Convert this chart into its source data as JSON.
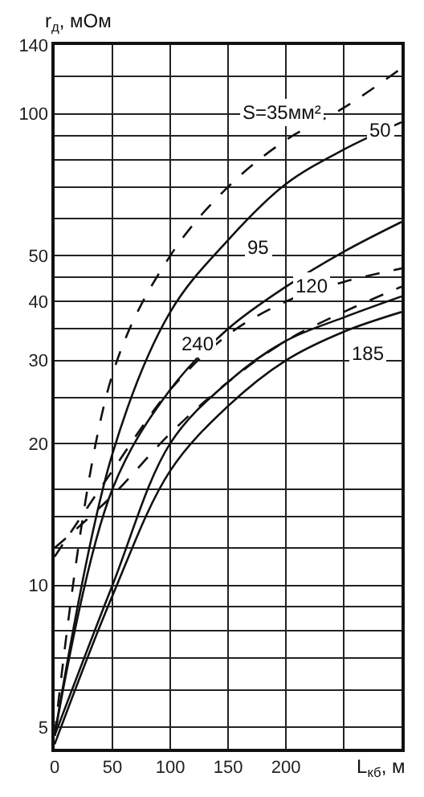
{
  "chart_data": {
    "type": "line",
    "xlabel": "L$_{кб}$, м",
    "ylabel": "r$_{д}$, мОм",
    "log": "y",
    "grid": true,
    "marker": "none",
    "x": [
      0,
      50,
      100,
      150,
      200,
      250,
      300
    ],
    "xlim": [
      0,
      300
    ],
    "xticks": [
      0,
      50,
      100,
      150,
      200,
      {
        "value": 250,
        "label": null
      },
      {
        "value": 300,
        "label": null
      }
    ],
    "ylim": [
      4.5,
      140
    ],
    "yticks": [
      5,
      {
        "value": 6,
        "label": null
      },
      {
        "value": 7,
        "label": null
      },
      {
        "value": 8,
        "label": null
      },
      {
        "value": 9,
        "label": null
      },
      10,
      {
        "value": 12,
        "label": null
      },
      {
        "value": 14,
        "label": null
      },
      {
        "value": 16,
        "label": null
      },
      20,
      {
        "value": 25,
        "label": null
      },
      30,
      {
        "value": 35,
        "label": null
      },
      40,
      {
        "value": 45,
        "label": null
      },
      50,
      {
        "value": 60,
        "label": null
      },
      {
        "value": 70,
        "label": null
      },
      {
        "value": 80,
        "label": null
      },
      {
        "value": 90,
        "label": null
      },
      100,
      {
        "value": 120,
        "label": null
      },
      140
    ],
    "series": [
      {
        "color": "#111111",
        "line_style": "dashed",
        "values": [
          4.8,
          28,
          50,
          70,
          88,
          103,
          125
        ]
      },
      {
        "color": "#111111",
        "line_style": "solid",
        "values": [
          4.8,
          19,
          38,
          54,
          71,
          84,
          96
        ]
      },
      {
        "color": "#111111",
        "line_style": "solid",
        "values": [
          4.8,
          16,
          26,
          35,
          43,
          51,
          59
        ]
      },
      {
        "color": "#111111",
        "line_style": "dashed",
        "values": [
          11.5,
          17.5,
          26,
          34,
          40,
          44,
          47
        ]
      },
      {
        "color": "#111111",
        "line_style": "dashed",
        "values": [
          12,
          15.5,
          21,
          27,
          33,
          38,
          43
        ]
      },
      {
        "color": "#111111",
        "line_style": "solid",
        "values": [
          4.8,
          10,
          20,
          27,
          33,
          37,
          41
        ]
      },
      {
        "color": "#111111",
        "line_style": "solid",
        "values": [
          4.6,
          9.5,
          17.5,
          24,
          30,
          34.5,
          38
        ]
      }
    ],
    "annotations": [
      "S=35мм²",
      "50",
      "95",
      "120",
      "240",
      "185"
    ]
  }
}
